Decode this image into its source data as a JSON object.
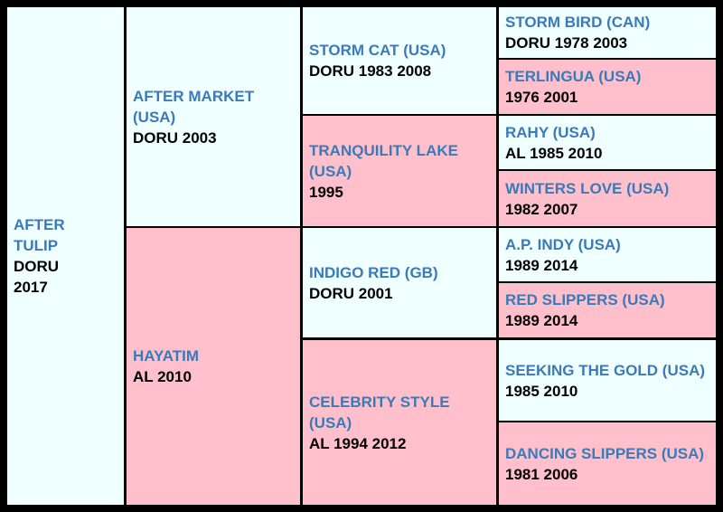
{
  "colors": {
    "male_bg": "#f0ffff",
    "female_bg": "#ffc0cb",
    "name_text": "#3a7ab8",
    "info_text": "#000000",
    "border": "#000000"
  },
  "subject": {
    "name": "AFTER TULIP",
    "info": "DORU 2017"
  },
  "sire": {
    "name": "AFTER MARKET (USA)",
    "info": "DORU 2003"
  },
  "dam": {
    "name": "HAYATIM",
    "info": "AL 2010"
  },
  "sire_sire": {
    "name": "STORM CAT (USA)",
    "info": "DORU 1983 2008"
  },
  "sire_dam": {
    "name": "TRANQUILITY LAKE (USA)",
    "info": "1995"
  },
  "dam_sire": {
    "name": "INDIGO RED (GB)",
    "info": "DORU 2001"
  },
  "dam_dam": {
    "name": "CELEBRITY STYLE (USA)",
    "info": "AL 1994 2012"
  },
  "ss_sire": {
    "name": "STORM BIRD (CAN)",
    "info": "DORU 1978 2003"
  },
  "ss_dam": {
    "name": "TERLINGUA (USA)",
    "info": "1976 2001"
  },
  "sd_sire": {
    "name": "RAHY (USA)",
    "info": "AL 1985 2010"
  },
  "sd_dam": {
    "name": "WINTERS LOVE (USA)",
    "info": "1982 2007"
  },
  "ds_sire": {
    "name": "A.P. INDY (USA)",
    "info": "1989 2014"
  },
  "ds_dam": {
    "name": "RED SLIPPERS (USA)",
    "info": "1989 2014"
  },
  "dd_sire": {
    "name": "SEEKING THE GOLD (USA)",
    "info": "1985 2010"
  },
  "dd_dam": {
    "name": "DANCING SLIPPERS (USA)",
    "info": "1981 2006"
  }
}
